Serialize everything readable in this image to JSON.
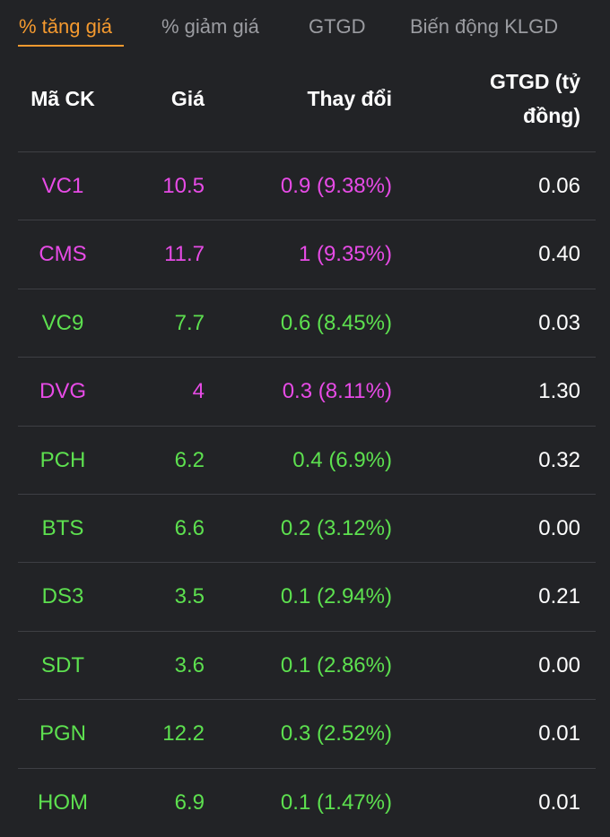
{
  "tabs": [
    {
      "label": "% tăng giá",
      "active": true
    },
    {
      "label": "% giảm giá",
      "active": false
    },
    {
      "label": "GTGD",
      "active": false
    },
    {
      "label": "Biến động KLGD",
      "active": false
    }
  ],
  "table": {
    "headers": {
      "code": "Mã CK",
      "price": "Giá",
      "change": "Thay đổi",
      "value_line1": "GTGD (tỷ",
      "value_line2": "đồng)"
    },
    "rows": [
      {
        "code": "VC1",
        "price": "10.5",
        "change": "0.9 (9.38%)",
        "value": "0.06",
        "status": "ceiling"
      },
      {
        "code": "CMS",
        "price": "11.7",
        "change": "1 (9.35%)",
        "value": "0.40",
        "status": "ceiling"
      },
      {
        "code": "VC9",
        "price": "7.7",
        "change": "0.6 (8.45%)",
        "value": "0.03",
        "status": "up"
      },
      {
        "code": "DVG",
        "price": "4",
        "change": "0.3 (8.11%)",
        "value": "1.30",
        "status": "ceiling"
      },
      {
        "code": "PCH",
        "price": "6.2",
        "change": "0.4 (6.9%)",
        "value": "0.32",
        "status": "up"
      },
      {
        "code": "BTS",
        "price": "6.6",
        "change": "0.2 (3.12%)",
        "value": "0.00",
        "status": "up"
      },
      {
        "code": "DS3",
        "price": "3.5",
        "change": "0.1 (2.94%)",
        "value": "0.21",
        "status": "up"
      },
      {
        "code": "SDT",
        "price": "3.6",
        "change": "0.1 (2.86%)",
        "value": "0.00",
        "status": "up"
      },
      {
        "code": "PGN",
        "price": "12.2",
        "change": "0.3 (2.52%)",
        "value": "0.01",
        "status": "up"
      },
      {
        "code": "HOM",
        "price": "6.9",
        "change": "0.1 (1.47%)",
        "value": "0.01",
        "status": "up"
      }
    ]
  },
  "colors": {
    "background": "#222326",
    "active_tab": "#f59a2f",
    "inactive_tab": "#9b9ca1",
    "ceiling": "#e74be6",
    "up": "#5de04f",
    "divider": "#3e3f44"
  }
}
